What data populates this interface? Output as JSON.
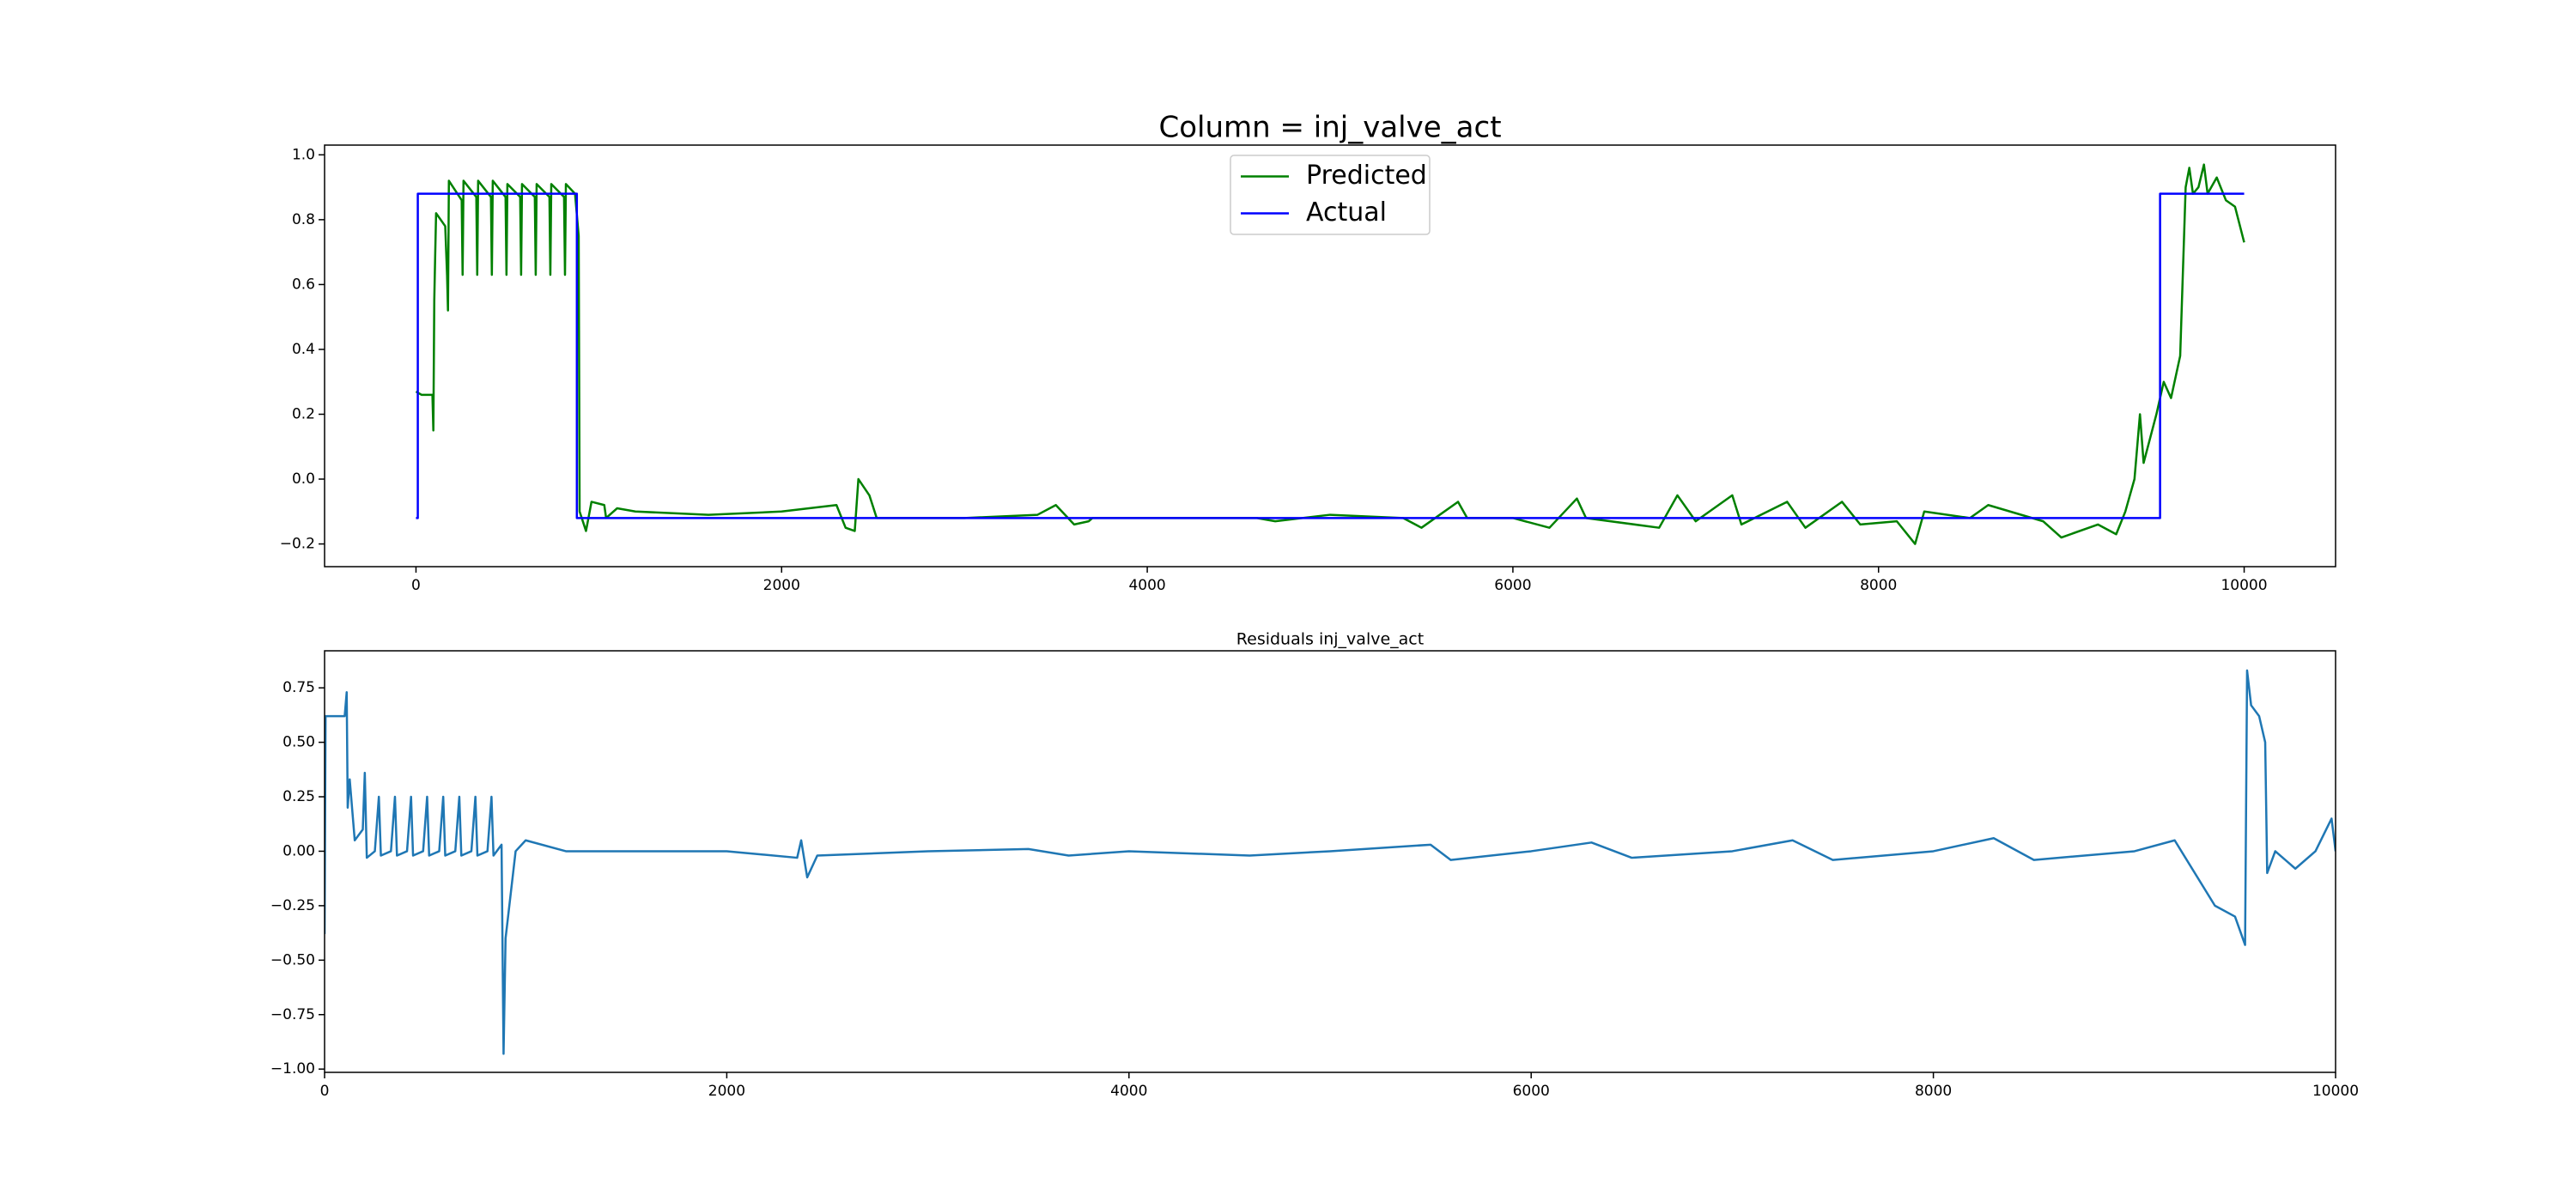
{
  "chart_data": [
    {
      "type": "line",
      "title": "Column = inj_valve_act",
      "series": [
        {
          "name": "Predicted",
          "color": "#008000",
          "x": [
            0,
            30,
            90,
            95,
            100,
            105,
            110,
            160,
            170,
            175,
            180,
            250,
            255,
            260,
            330,
            335,
            340,
            410,
            415,
            420,
            490,
            495,
            500,
            570,
            575,
            580,
            650,
            655,
            660,
            730,
            735,
            740,
            810,
            815,
            820,
            870,
            890,
            895,
            930,
            960,
            1030,
            1040,
            1100,
            1200,
            1600,
            2000,
            2300,
            2350,
            2400,
            2420,
            2480,
            2520,
            3000,
            3400,
            3500,
            3600,
            3680,
            3700,
            4000,
            4600,
            4700,
            5000,
            5400,
            5500,
            5600,
            5700,
            5750,
            6000,
            6200,
            6350,
            6400,
            6800,
            6900,
            7000,
            7200,
            7250,
            7500,
            7600,
            7800,
            7900,
            8100,
            8200,
            8250,
            8500,
            8600,
            8900,
            9000,
            9200,
            9300,
            9350,
            9400,
            9430,
            9450,
            9520,
            9560,
            9600,
            9650,
            9680,
            9700,
            9720,
            9750,
            9780,
            9800,
            9850,
            9900,
            9950,
            10000
          ],
          "values": [
            0.27,
            0.26,
            0.26,
            0.15,
            0.55,
            0.69,
            0.82,
            0.78,
            0.63,
            0.52,
            0.92,
            0.86,
            0.63,
            0.92,
            0.87,
            0.63,
            0.92,
            0.87,
            0.63,
            0.92,
            0.87,
            0.63,
            0.91,
            0.87,
            0.63,
            0.91,
            0.87,
            0.63,
            0.91,
            0.87,
            0.63,
            0.91,
            0.87,
            0.63,
            0.91,
            0.88,
            0.75,
            -0.1,
            -0.16,
            -0.07,
            -0.08,
            -0.12,
            -0.09,
            -0.1,
            -0.11,
            -0.1,
            -0.08,
            -0.15,
            -0.16,
            0.0,
            -0.05,
            -0.12,
            -0.12,
            -0.11,
            -0.08,
            -0.14,
            -0.13,
            -0.12,
            -0.12,
            -0.12,
            -0.13,
            -0.11,
            -0.12,
            -0.15,
            -0.11,
            -0.07,
            -0.12,
            -0.12,
            -0.15,
            -0.06,
            -0.12,
            -0.15,
            -0.05,
            -0.13,
            -0.05,
            -0.14,
            -0.07,
            -0.15,
            -0.07,
            -0.14,
            -0.13,
            -0.2,
            -0.1,
            -0.12,
            -0.08,
            -0.13,
            -0.18,
            -0.14,
            -0.17,
            -0.1,
            0.0,
            0.2,
            0.05,
            0.2,
            0.3,
            0.25,
            0.38,
            0.9,
            0.96,
            0.88,
            0.9,
            0.97,
            0.88,
            0.93,
            0.86,
            0.84,
            0.73
          ]
        },
        {
          "name": "Actual",
          "color": "#0000ff",
          "x": [
            0,
            10,
            10,
            880,
            880,
            9540,
            9540,
            10000
          ],
          "values": [
            -0.12,
            -0.12,
            0.88,
            0.88,
            -0.12,
            -0.12,
            0.88,
            0.88
          ]
        }
      ],
      "legend": "upper center",
      "xlim": [
        -500,
        10500
      ],
      "xticks": [
        0,
        2000,
        4000,
        6000,
        8000,
        10000
      ],
      "ylim": [
        -0.27,
        1.03
      ],
      "yticks": [
        {
          "value": -0.2,
          "label": "−0.2"
        },
        {
          "value": 0,
          "label": "0.0"
        },
        0.2,
        0.4,
        0.6,
        0.8,
        {
          "value": 1,
          "label": "1.0"
        }
      ]
    },
    {
      "type": "line",
      "title": "Residuals inj_valve_act",
      "series": [
        {
          "color": "#1f77b4",
          "x": [
            0,
            5,
            10,
            100,
            110,
            115,
            125,
            150,
            190,
            200,
            210,
            250,
            270,
            280,
            330,
            350,
            360,
            410,
            430,
            440,
            490,
            510,
            520,
            570,
            590,
            600,
            650,
            670,
            680,
            730,
            750,
            760,
            810,
            830,
            840,
            880,
            890,
            900,
            950,
            1000,
            1200,
            1600,
            2000,
            2350,
            2370,
            2400,
            2450,
            3000,
            3500,
            3700,
            4000,
            4600,
            5000,
            5500,
            5600,
            6000,
            6300,
            6500,
            7000,
            7300,
            7500,
            8000,
            8300,
            8500,
            9000,
            9200,
            9400,
            9500,
            9550,
            9560,
            9580,
            9620,
            9650,
            9660,
            9700,
            9800,
            9900,
            9980,
            10000
          ],
          "values": [
            -0.38,
            0.62,
            0.62,
            0.62,
            0.73,
            0.2,
            0.33,
            0.05,
            0.1,
            0.36,
            -0.03,
            0.0,
            0.25,
            -0.02,
            0.0,
            0.25,
            -0.02,
            0.0,
            0.25,
            -0.02,
            0.0,
            0.25,
            -0.02,
            0.0,
            0.25,
            -0.02,
            0.0,
            0.25,
            -0.02,
            0.0,
            0.25,
            -0.02,
            0.0,
            0.25,
            -0.02,
            0.03,
            -0.93,
            -0.4,
            0.0,
            0.05,
            0.0,
            0.0,
            0.0,
            -0.03,
            0.05,
            -0.12,
            -0.02,
            0.0,
            0.01,
            -0.02,
            0.0,
            -0.02,
            0.0,
            0.03,
            -0.04,
            0.0,
            0.04,
            -0.03,
            0.0,
            0.05,
            -0.04,
            0.0,
            0.06,
            -0.04,
            0.0,
            0.05,
            -0.25,
            -0.3,
            -0.43,
            0.83,
            0.67,
            0.62,
            0.5,
            -0.1,
            0.0,
            -0.08,
            0.0,
            0.15,
            0.0
          ]
        }
      ],
      "xlim": [
        0,
        10000
      ],
      "xticks": [
        0,
        2000,
        4000,
        6000,
        8000,
        10000
      ],
      "ylim": [
        -1.015,
        0.92
      ],
      "yticks": [
        {
          "value": -1,
          "label": "−1.00"
        },
        {
          "value": -0.75,
          "label": "−0.75"
        },
        {
          "value": -0.5,
          "label": "−0.50"
        },
        {
          "value": -0.25,
          "label": "−0.25"
        },
        {
          "value": 0,
          "label": "0.00"
        },
        0.25,
        {
          "value": 0.5,
          "label": "0.50"
        },
        0.75
      ]
    }
  ]
}
